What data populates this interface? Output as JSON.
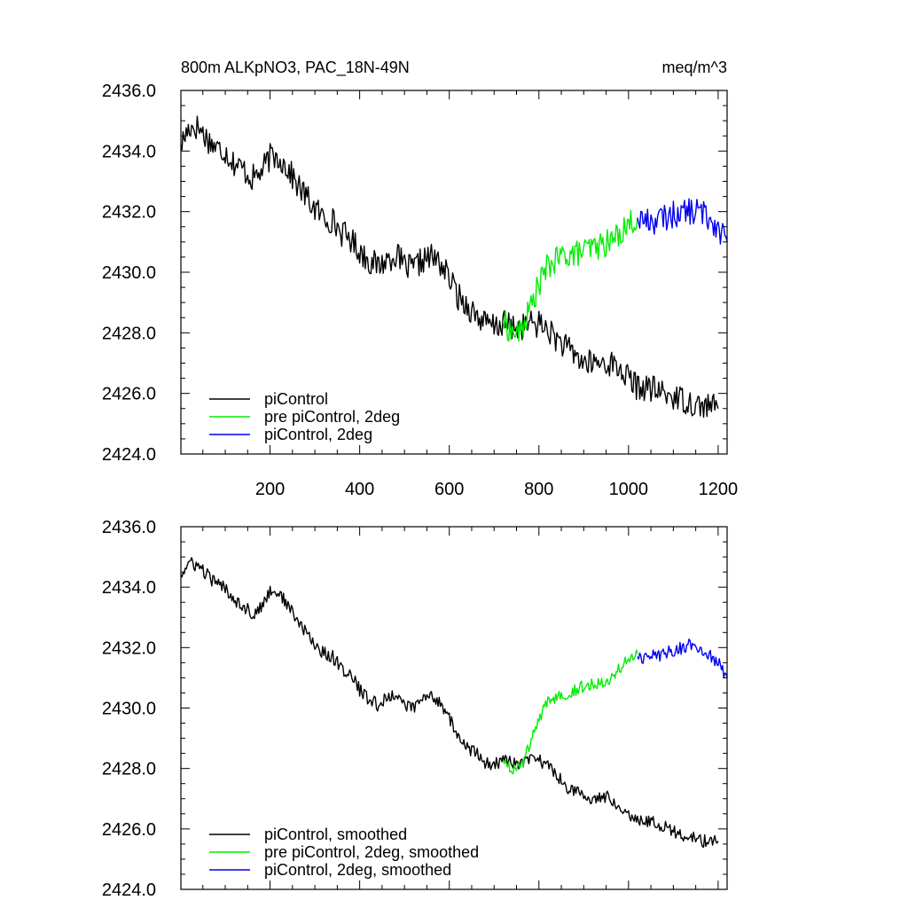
{
  "chart_data": [
    {
      "type": "line",
      "title": "800m ALKpNO3, PAC_18N-49N",
      "units": "meq/m^3",
      "xlim": [
        1,
        1220
      ],
      "ylim": [
        2424.0,
        2436.0
      ],
      "x_ticks": [
        200,
        400,
        600,
        800,
        1000,
        1200
      ],
      "x_tick_labels": [
        "200",
        "400",
        "600",
        "800",
        "1000",
        "1200"
      ],
      "y_ticks": [
        2424,
        2426,
        2428,
        2430,
        2432,
        2434,
        2436
      ],
      "y_tick_labels": [
        "2424.0",
        "2426.0",
        "2428.0",
        "2430.0",
        "2432.0",
        "2434.0",
        "2436.0"
      ],
      "legend": [
        "piControl",
        "pre piControl, 2deg",
        "piControl, 2deg"
      ],
      "series": [
        {
          "name": "piControl",
          "color": "#000000",
          "x": [
            1,
            20,
            40,
            60,
            80,
            100,
            120,
            140,
            160,
            180,
            200,
            220,
            240,
            260,
            280,
            300,
            320,
            340,
            360,
            380,
            400,
            420,
            440,
            460,
            480,
            500,
            520,
            540,
            560,
            580,
            600,
            620,
            640,
            660,
            680,
            700,
            720,
            740,
            760,
            780,
            800,
            820,
            840,
            860,
            880,
            900,
            920,
            940,
            960,
            980,
            1000,
            1020,
            1040,
            1060,
            1080,
            1100,
            1120,
            1140,
            1160,
            1180,
            1200
          ],
          "y": [
            2434.2,
            2434.8,
            2434.8,
            2434.4,
            2434.1,
            2434.0,
            2433.6,
            2433.4,
            2433.1,
            2433.3,
            2433.8,
            2433.8,
            2433.4,
            2432.9,
            2432.5,
            2432.1,
            2431.8,
            2431.7,
            2431.3,
            2431.1,
            2430.7,
            2430.4,
            2430.2,
            2430.4,
            2430.6,
            2430.2,
            2430.1,
            2430.4,
            2430.5,
            2430.3,
            2429.8,
            2429.2,
            2428.9,
            2428.6,
            2428.3,
            2428.2,
            2428.3,
            2428.2,
            2428.2,
            2428.3,
            2428.3,
            2428.1,
            2427.8,
            2427.5,
            2427.3,
            2427.0,
            2427.0,
            2427.0,
            2427.0,
            2426.8,
            2426.5,
            2426.2,
            2426.2,
            2426.1,
            2426.0,
            2425.9,
            2425.8,
            2425.7,
            2425.6,
            2425.6,
            2425.5
          ]
        },
        {
          "name": "pre piControl, 2deg",
          "color": "#00ee00",
          "x": [
            720,
            740,
            760,
            780,
            800,
            820,
            840,
            860,
            880,
            900,
            920,
            940,
            960,
            980,
            1000,
            1020
          ],
          "y": [
            2428.4,
            2428.0,
            2428.0,
            2428.8,
            2429.6,
            2430.2,
            2430.4,
            2430.6,
            2430.6,
            2430.7,
            2430.8,
            2430.9,
            2431.0,
            2431.3,
            2431.6,
            2431.8
          ]
        },
        {
          "name": "piControl, 2deg",
          "color": "#0000ee",
          "x": [
            1020,
            1040,
            1060,
            1080,
            1100,
            1120,
            1140,
            1160,
            1180,
            1200,
            1220
          ],
          "y": [
            2431.8,
            2431.7,
            2431.7,
            2431.8,
            2431.9,
            2432.0,
            2432.0,
            2432.0,
            2431.8,
            2431.5,
            2431.0
          ]
        }
      ]
    },
    {
      "type": "line",
      "title": "",
      "xlim": [
        1,
        1220
      ],
      "ylim": [
        2424.0,
        2436.0
      ],
      "x_ticks": [
        200,
        400,
        600,
        800,
        1000,
        1200
      ],
      "x_tick_labels": [],
      "y_ticks": [
        2424,
        2426,
        2428,
        2430,
        2432,
        2434,
        2436
      ],
      "y_tick_labels": [
        "2424.0",
        "2426.0",
        "2428.0",
        "2430.0",
        "2432.0",
        "2434.0",
        "2436.0"
      ],
      "legend": [
        "piControl, smoothed",
        "pre piControl, 2deg, smoothed",
        "piControl, 2deg, smoothed"
      ],
      "series": [
        {
          "name": "piControl, smoothed",
          "color": "#000000",
          "x": [
            1,
            20,
            40,
            60,
            80,
            100,
            120,
            140,
            160,
            180,
            200,
            220,
            240,
            260,
            280,
            300,
            320,
            340,
            360,
            380,
            400,
            420,
            440,
            460,
            480,
            500,
            520,
            540,
            560,
            580,
            600,
            620,
            640,
            660,
            680,
            700,
            720,
            740,
            760,
            780,
            800,
            820,
            840,
            860,
            880,
            900,
            920,
            940,
            960,
            980,
            1000,
            1020,
            1040,
            1060,
            1080,
            1100,
            1120,
            1140,
            1160,
            1180,
            1200
          ],
          "y": [
            2434.4,
            2434.8,
            2434.7,
            2434.4,
            2434.1,
            2434.0,
            2433.6,
            2433.4,
            2433.1,
            2433.3,
            2433.9,
            2433.8,
            2433.4,
            2432.9,
            2432.5,
            2432.1,
            2431.8,
            2431.7,
            2431.3,
            2431.1,
            2430.6,
            2430.3,
            2430.1,
            2430.3,
            2430.5,
            2430.1,
            2430.0,
            2430.3,
            2430.4,
            2430.2,
            2429.7,
            2429.0,
            2428.7,
            2428.5,
            2428.2,
            2428.1,
            2428.3,
            2428.2,
            2428.1,
            2428.3,
            2428.3,
            2428.1,
            2427.8,
            2427.4,
            2427.3,
            2427.0,
            2427.0,
            2427.1,
            2427.0,
            2426.8,
            2426.5,
            2426.3,
            2426.3,
            2426.2,
            2426.1,
            2425.9,
            2425.8,
            2425.7,
            2425.6,
            2425.6,
            2425.6
          ]
        },
        {
          "name": "pre piControl, 2deg, smoothed",
          "color": "#00ee00",
          "x": [
            720,
            740,
            760,
            780,
            800,
            820,
            840,
            860,
            880,
            900,
            920,
            940,
            960,
            980,
            1000,
            1020
          ],
          "y": [
            2428.3,
            2428.0,
            2428.0,
            2428.8,
            2429.6,
            2430.2,
            2430.4,
            2430.5,
            2430.6,
            2430.7,
            2430.8,
            2430.9,
            2431.0,
            2431.3,
            2431.6,
            2431.8
          ]
        },
        {
          "name": "piControl, 2deg, smoothed",
          "color": "#0000ee",
          "x": [
            1020,
            1040,
            1060,
            1080,
            1100,
            1120,
            1140,
            1160,
            1180,
            1200,
            1220
          ],
          "y": [
            2431.7,
            2431.7,
            2431.7,
            2431.8,
            2431.9,
            2432.0,
            2432.1,
            2432.0,
            2431.8,
            2431.5,
            2431.0
          ]
        }
      ]
    }
  ]
}
